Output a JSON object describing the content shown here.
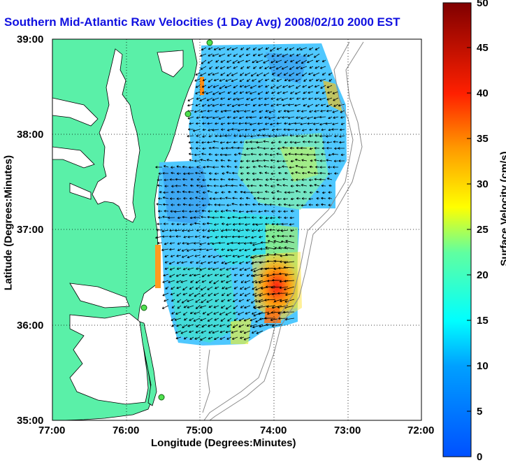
{
  "title": "Southern Mid-Atlantic Raw Velocities (1 Day Avg) 2008/02/10 2000 EST",
  "x_label": "Longitude (Degrees:Minutes)",
  "y_label": "Latitude (Degrees:Minutes)",
  "colorbar": {
    "label": "Surface Velocity (cm/s)",
    "min": 0,
    "max": 50,
    "ticks": [
      "0",
      "5",
      "10",
      "15",
      "20",
      "25",
      "30",
      "35",
      "40",
      "45",
      "50"
    ]
  },
  "x_ticks": [
    "77:00",
    "76:00",
    "75:00",
    "74:00",
    "73:00",
    "72:00"
  ],
  "y_ticks": [
    "39:00",
    "38:00",
    "37:00",
    "36:00",
    "35:00"
  ],
  "colors": {
    "land": "#5af0a8",
    "title": "#1010e0",
    "grid": "#000000",
    "bathymetry": "#8a8a8a"
  }
}
